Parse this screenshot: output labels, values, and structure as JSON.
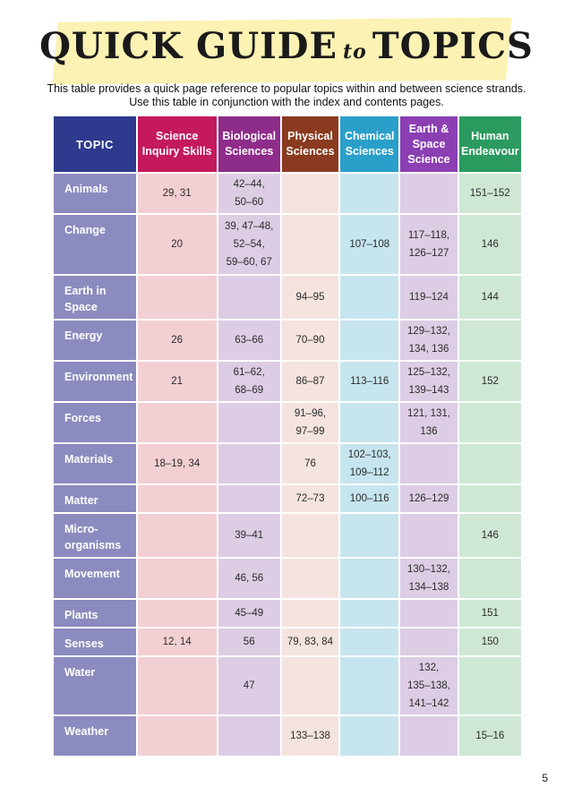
{
  "title": {
    "part1": "QUICK GUIDE",
    "part2": "to",
    "part3": "TOPICS"
  },
  "subtitle": {
    "line1": "This table provides a quick page reference to popular topics within and between science strands.",
    "line2": "Use this table in conjunction with the index and contents pages."
  },
  "colors": {
    "topic_header": "#2d3a8e",
    "topic_cell": "#8b8bbf",
    "science_inquiry": "#c4195c",
    "biological": "#8e2c8a",
    "physical": "#8a3a1f",
    "chemical": "#2a9fc9",
    "earth_space": "#8b3fb2",
    "human": "#2a9a5e",
    "banner": "#fbf2b3"
  },
  "headers": {
    "topic": "TOPIC",
    "c1": [
      "Science",
      "Inquiry Skills"
    ],
    "c2": [
      "Biological",
      "Sciences"
    ],
    "c3": [
      "Physical",
      "Sciences"
    ],
    "c4": [
      "Chemical",
      "Sciences"
    ],
    "c5": [
      "Earth &",
      "Space",
      "Science"
    ],
    "c6": [
      "Human",
      "Endeavour"
    ]
  },
  "rows": [
    {
      "topic": [
        "Animals"
      ],
      "c1": [
        "29, 31"
      ],
      "c2": [
        "42–44,",
        "50–60"
      ],
      "c3": [],
      "c4": [],
      "c5": [],
      "c6": [
        "151–152"
      ]
    },
    {
      "topic": [
        "Change"
      ],
      "c1": [
        "20"
      ],
      "c2": [
        "39, 47–48,",
        "52–54,",
        "59–60, 67"
      ],
      "c3": [],
      "c4": [
        "107–108"
      ],
      "c5": [
        "117–118,",
        "126–127"
      ],
      "c6": [
        "146"
      ]
    },
    {
      "topic": [
        "Earth in",
        "Space"
      ],
      "c1": [],
      "c2": [],
      "c3": [
        "94–95"
      ],
      "c4": [],
      "c5": [
        "119–124"
      ],
      "c6": [
        "144"
      ]
    },
    {
      "topic": [
        "Energy"
      ],
      "c1": [
        "26"
      ],
      "c2": [
        "63–66"
      ],
      "c3": [
        "70–90"
      ],
      "c4": [],
      "c5": [
        "129–132,",
        "134, 136"
      ],
      "c6": []
    },
    {
      "topic": [
        "Environment"
      ],
      "c1": [
        "21"
      ],
      "c2": [
        "61–62,",
        "68–69"
      ],
      "c3": [
        "86–87"
      ],
      "c4": [
        "113–116"
      ],
      "c5": [
        "125–132,",
        "139–143"
      ],
      "c6": [
        "152"
      ]
    },
    {
      "topic": [
        "Forces"
      ],
      "c1": [],
      "c2": [],
      "c3": [
        "91–96,",
        "97–99"
      ],
      "c4": [],
      "c5": [
        "121, 131,",
        "136"
      ],
      "c6": []
    },
    {
      "topic": [
        "Materials"
      ],
      "c1": [
        "18–19, 34"
      ],
      "c2": [],
      "c3": [
        "76"
      ],
      "c4": [
        "102–103,",
        "109–112"
      ],
      "c5": [],
      "c6": []
    },
    {
      "topic": [
        "Matter"
      ],
      "c1": [],
      "c2": [],
      "c3": [
        "72–73"
      ],
      "c4": [
        "100–116"
      ],
      "c5": [
        "126–129"
      ],
      "c6": []
    },
    {
      "topic": [
        "Micro-",
        "organisms"
      ],
      "c1": [],
      "c2": [
        "39–41"
      ],
      "c3": [],
      "c4": [],
      "c5": [],
      "c6": [
        "146"
      ]
    },
    {
      "topic": [
        "Movement"
      ],
      "c1": [],
      "c2": [
        "46, 56"
      ],
      "c3": [],
      "c4": [],
      "c5": [
        "130–132,",
        "134–138"
      ],
      "c6": []
    },
    {
      "topic": [
        "Plants"
      ],
      "c1": [],
      "c2": [
        "45–49"
      ],
      "c3": [],
      "c4": [],
      "c5": [],
      "c6": [
        "151"
      ]
    },
    {
      "topic": [
        "Senses"
      ],
      "c1": [
        "12, 14"
      ],
      "c2": [
        "56"
      ],
      "c3": [
        "79, 83, 84"
      ],
      "c4": [],
      "c5": [],
      "c6": [
        "150"
      ]
    },
    {
      "topic": [
        "Water"
      ],
      "c1": [],
      "c2": [
        "47"
      ],
      "c3": [],
      "c4": [],
      "c5": [
        "132,",
        "135–138,",
        "141–142"
      ],
      "c6": []
    },
    {
      "topic": [
        "Weather"
      ],
      "c1": [],
      "c2": [],
      "c3": [
        "133–138"
      ],
      "c4": [],
      "c5": [],
      "c6": [
        "15–16"
      ]
    }
  ],
  "page_number": "5"
}
